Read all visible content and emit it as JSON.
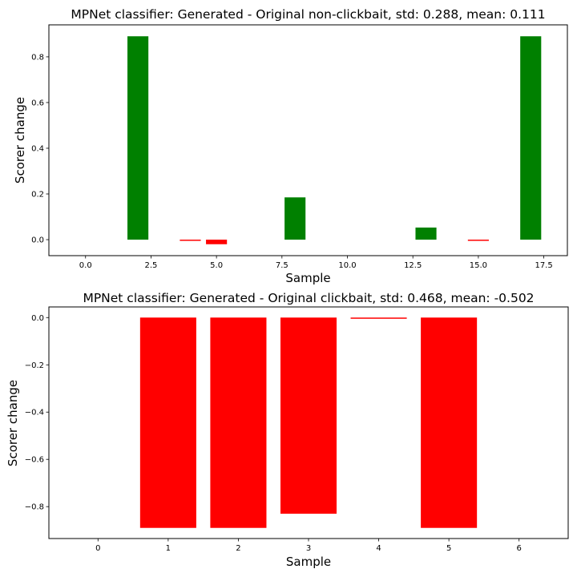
{
  "chart_data": [
    {
      "type": "bar",
      "title": "MPNet classifier: Generated - Original non-clickbait, std: 0.288, mean: 0.111",
      "xlabel": "Sample",
      "ylabel": "Scorer change",
      "xlim": [
        -1.4,
        18.4
      ],
      "ylim": [
        -0.07,
        0.94
      ],
      "xticks": [
        0.0,
        2.5,
        5.0,
        7.5,
        10.0,
        12.5,
        15.0,
        17.5
      ],
      "xtick_labels": [
        "0.0",
        "2.5",
        "5.0",
        "7.5",
        "10.0",
        "12.5",
        "15.0",
        "17.5"
      ],
      "yticks": [
        0.0,
        0.2,
        0.4,
        0.6,
        0.8
      ],
      "ytick_labels": [
        "0.0",
        "0.2",
        "0.4",
        "0.6",
        "0.8"
      ],
      "bar_width": 0.8,
      "x": [
        2,
        4,
        5,
        8,
        13,
        15,
        17
      ],
      "values": [
        0.89,
        -0.005,
        -0.02,
        0.185,
        0.053,
        -0.002,
        0.89
      ],
      "colors": {
        "positive": "#008000",
        "negative": "#ff0000"
      },
      "grid": false,
      "legend": "none"
    },
    {
      "type": "bar",
      "title": "MPNet classifier: Generated - Original clickbait, std: 0.468, mean: -0.502",
      "xlabel": "Sample",
      "ylabel": "Scorer change",
      "xlim": [
        -0.7,
        6.7
      ],
      "ylim": [
        -0.935,
        0.045
      ],
      "xticks": [
        0,
        1,
        2,
        3,
        4,
        5,
        6
      ],
      "xtick_labels": [
        "0",
        "1",
        "2",
        "3",
        "4",
        "5",
        "6"
      ],
      "yticks": [
        0.0,
        -0.2,
        -0.4,
        -0.6,
        -0.8
      ],
      "ytick_labels": [
        "0.0",
        "−0.2",
        "−0.4",
        "−0.6",
        "−0.8"
      ],
      "bar_width": 0.8,
      "x": [
        1,
        2,
        3,
        4,
        5
      ],
      "values": [
        -0.89,
        -0.89,
        -0.83,
        -0.005,
        -0.89
      ],
      "colors": {
        "positive": "#008000",
        "negative": "#ff0000"
      },
      "grid": false,
      "legend": "none"
    }
  ]
}
